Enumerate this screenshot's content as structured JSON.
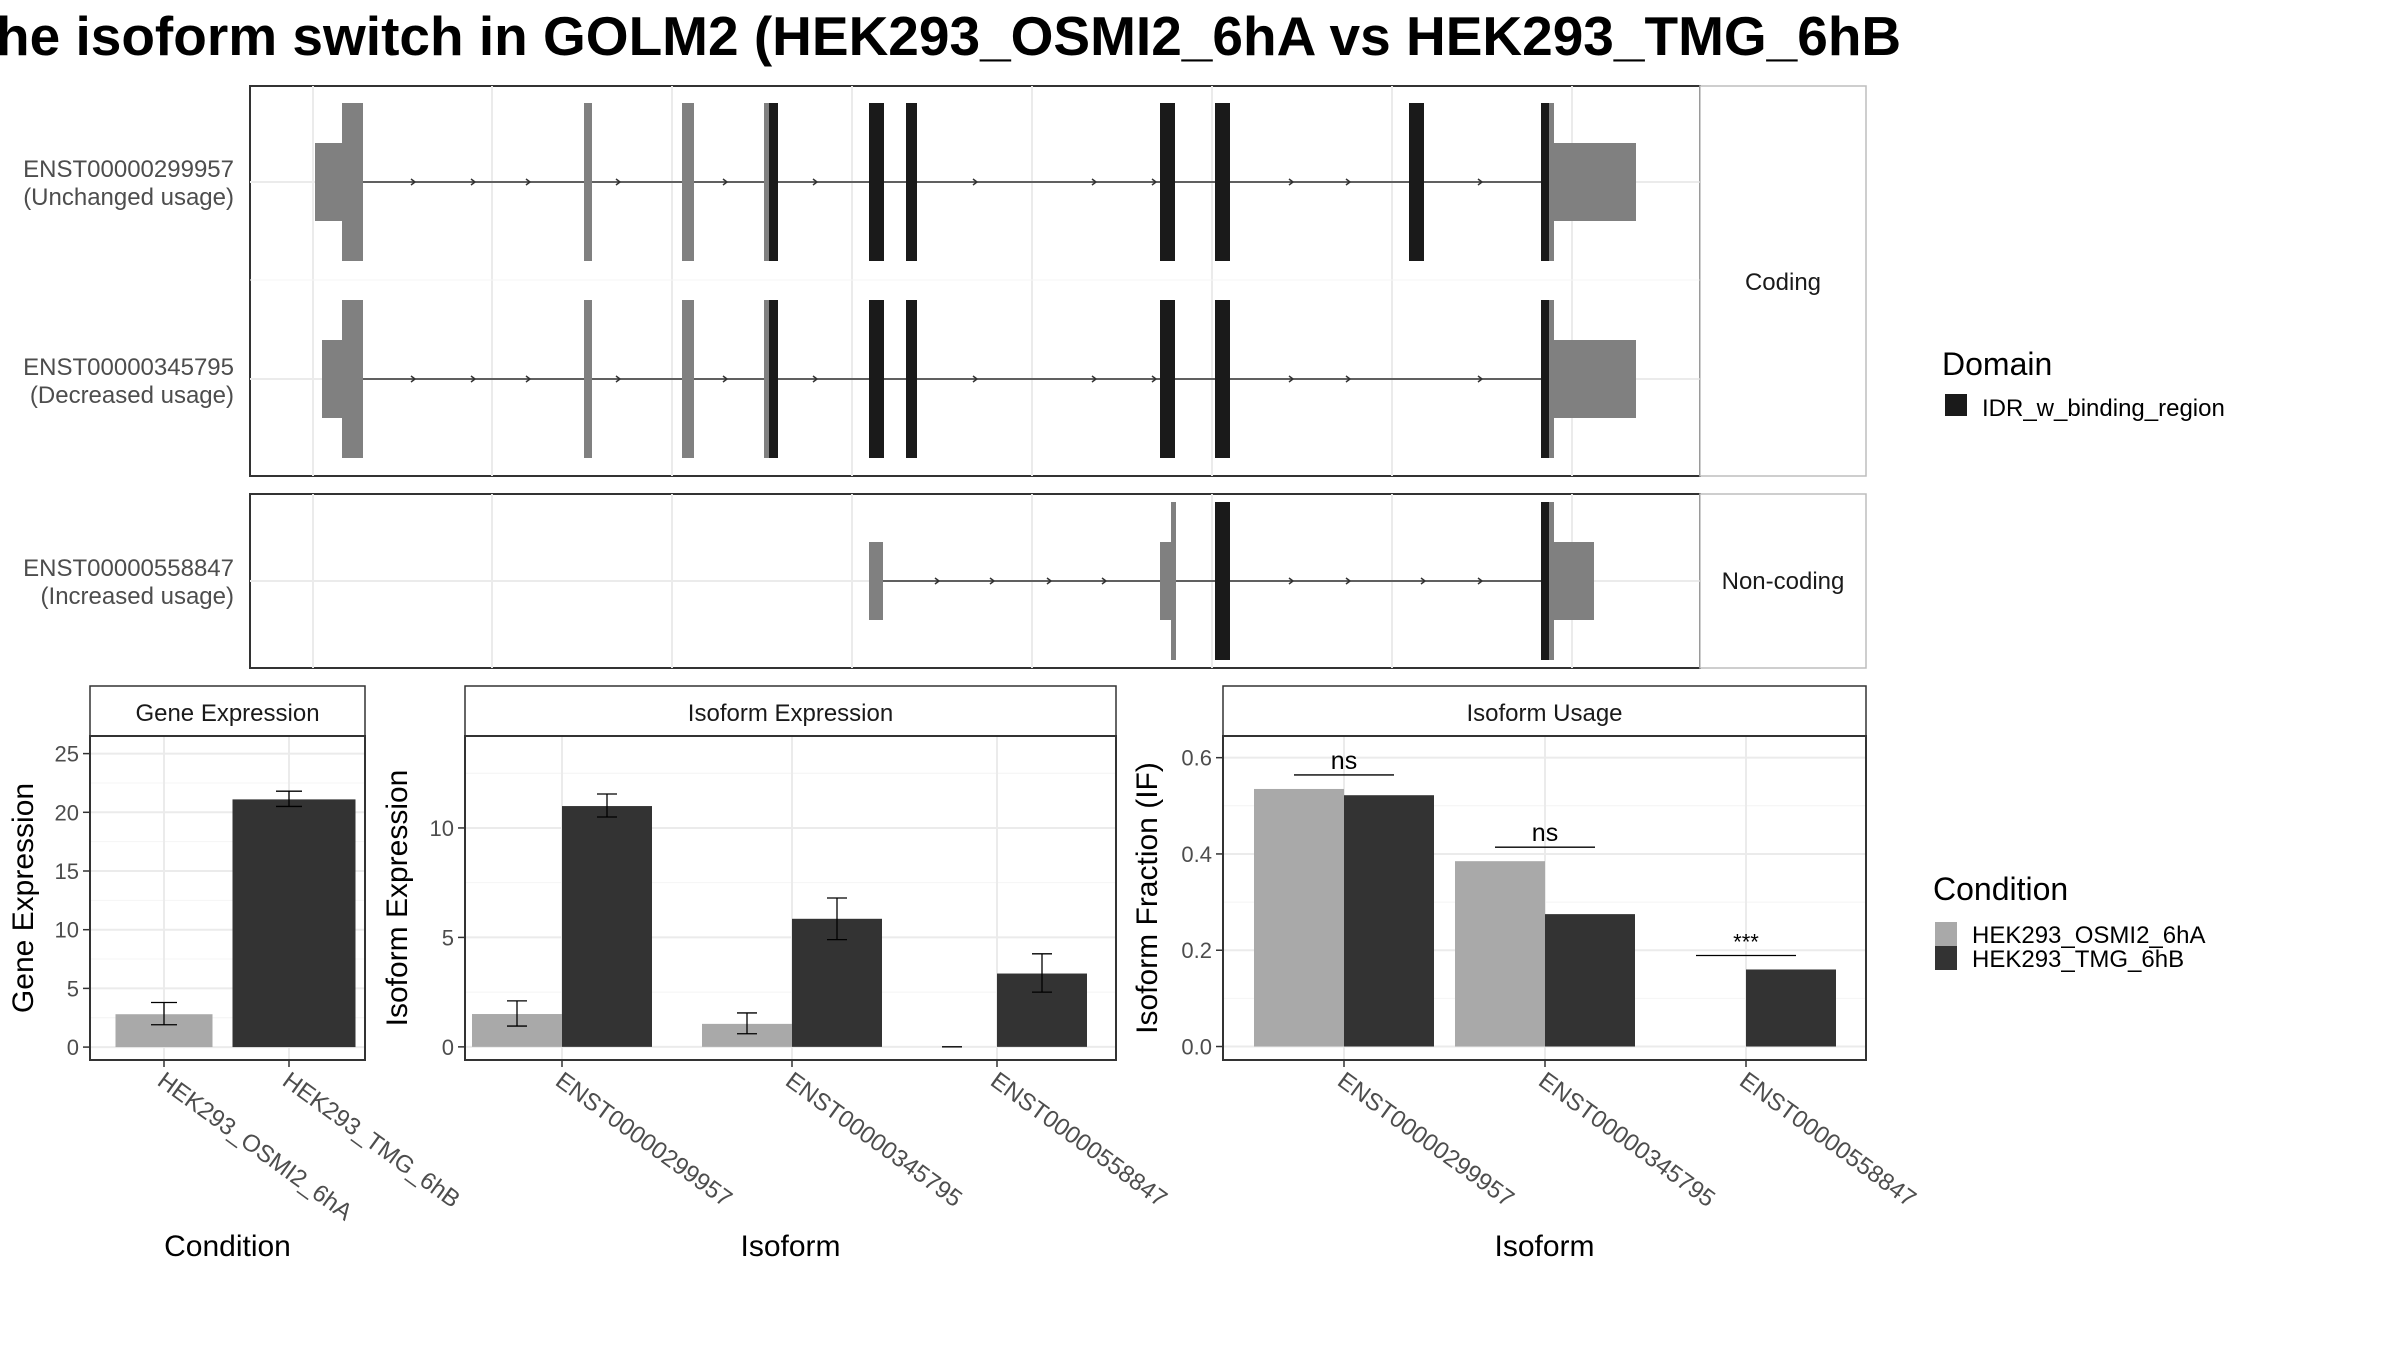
{
  "title": "he isoform switch in GOLM2 (HEK293_OSMI2_6hA vs HEK293_TMG_6hB",
  "structure": {
    "strips": {
      "coding": "Coding",
      "noncoding": "Non-coding"
    },
    "isoforms": [
      {
        "id": "ENST00000299957",
        "usage": "(Unchanged usage)",
        "group": "coding"
      },
      {
        "id": "ENST00000345795",
        "usage": "(Decreased usage)",
        "group": "coding"
      },
      {
        "id": "ENST00000558847",
        "usage": "(Increased usage)",
        "group": "noncoding"
      }
    ]
  },
  "legends": {
    "domain": {
      "title": "Domain",
      "items": [
        {
          "label": "IDR_w_binding_region",
          "color": "#1a1a1a"
        }
      ]
    },
    "condition": {
      "title": "Condition",
      "items": [
        {
          "label": "HEK293_OSMI2_6hA",
          "color": "#a9a9a9"
        },
        {
          "label": "HEK293_TMG_6hB",
          "color": "#333333"
        }
      ]
    }
  },
  "colors": {
    "exon": "#808080",
    "domain": "#1a1a1a",
    "condition_a": "#a9a9a9",
    "condition_b": "#333333",
    "grid": "#ebebeb",
    "axis_text": "#4d4d4d"
  },
  "chart_data": [
    {
      "type": "bar",
      "strip": "Gene Expression",
      "xlabel": "Condition",
      "ylabel": "Gene Expression",
      "categories": [
        "HEK293_OSMI2_6hA",
        "HEK293_TMG_6hB"
      ],
      "values": [
        2.8,
        21.1
      ],
      "error_low": [
        1.9,
        20.5
      ],
      "error_high": [
        3.8,
        21.8
      ],
      "ylim": [
        -1.1,
        26.5
      ],
      "yticks": [
        0,
        5,
        10,
        15,
        20,
        25
      ]
    },
    {
      "type": "bar",
      "strip": "Isoform Expression",
      "xlabel": "Isoform",
      "ylabel": "Isoform Expression",
      "categories": [
        "ENST00000299957",
        "ENST00000345795",
        "ENST00000558847"
      ],
      "series": [
        {
          "name": "HEK293_OSMI2_6hA",
          "values": [
            1.5,
            1.05,
            0.0
          ],
          "error_low": [
            0.95,
            0.6,
            0.0
          ],
          "error_high": [
            2.1,
            1.55,
            0.0
          ]
        },
        {
          "name": "HEK293_TMG_6hB",
          "values": [
            11.0,
            5.85,
            3.35
          ],
          "error_low": [
            10.5,
            4.9,
            2.5
          ],
          "error_high": [
            11.55,
            6.8,
            4.25
          ]
        }
      ],
      "ylim": [
        -0.6,
        14.2
      ],
      "yticks": [
        0,
        5,
        10
      ]
    },
    {
      "type": "bar",
      "strip": "Isoform Usage",
      "xlabel": "Isoform",
      "ylabel": "Isoform Fraction (IF)",
      "categories": [
        "ENST00000299957",
        "ENST00000345795",
        "ENST00000558847"
      ],
      "series": [
        {
          "name": "HEK293_OSMI2_6hA",
          "values": [
            0.535,
            0.385,
            0.0
          ]
        },
        {
          "name": "HEK293_TMG_6hB",
          "values": [
            0.522,
            0.275,
            0.16
          ]
        }
      ],
      "significance": [
        "ns",
        "ns",
        "***"
      ],
      "ylim": [
        -0.028,
        0.645
      ],
      "yticks": [
        "0.0",
        "0.2",
        "0.4",
        "0.6"
      ]
    }
  ]
}
